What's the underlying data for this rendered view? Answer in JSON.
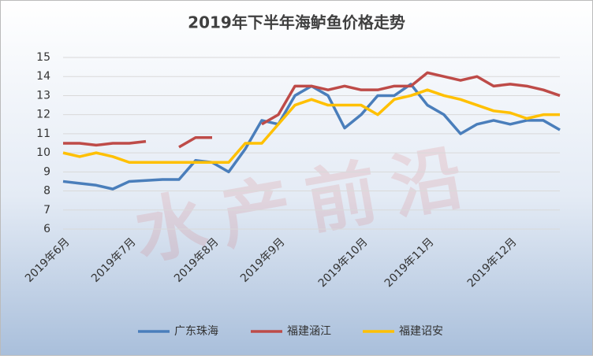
{
  "chart_data": {
    "type": "line",
    "title": "2019年下半年海鲈鱼价格走势",
    "watermark": "水产前沿",
    "categories": [
      "2019年6月",
      null,
      null,
      null,
      "2019年7月",
      null,
      null,
      null,
      null,
      "2019年8月",
      null,
      null,
      null,
      "2019年9月",
      null,
      null,
      null,
      null,
      "2019年10月",
      null,
      null,
      null,
      "2019年11月",
      null,
      null,
      null,
      null,
      "2019年12月",
      null,
      null,
      null
    ],
    "series": [
      {
        "name": "广东珠海",
        "color": "#4a7ebb",
        "values": [
          8.5,
          8.4,
          8.3,
          8.1,
          8.5,
          8.55,
          8.6,
          8.6,
          9.6,
          9.5,
          9.0,
          10.2,
          11.7,
          11.5,
          13.0,
          13.5,
          13.0,
          11.3,
          12.0,
          13.0,
          13.0,
          13.6,
          12.5,
          12.0,
          11.0,
          11.5,
          11.7,
          11.5,
          11.7,
          11.7,
          11.2
        ]
      },
      {
        "name": "福建涵江",
        "color": "#be4b48",
        "values": [
          10.5,
          10.5,
          10.4,
          10.5,
          10.5,
          10.6,
          null,
          10.3,
          10.8,
          10.8,
          null,
          null,
          11.5,
          12.0,
          13.5,
          13.5,
          13.3,
          13.5,
          13.3,
          13.3,
          13.5,
          13.5,
          14.2,
          14.0,
          13.8,
          14.0,
          13.5,
          13.6,
          13.5,
          13.3,
          13.0
        ]
      },
      {
        "name": "福建诏安",
        "color": "#ffc000",
        "values": [
          10.0,
          9.8,
          10.0,
          9.8,
          9.5,
          9.5,
          9.5,
          9.5,
          9.5,
          9.5,
          9.5,
          10.5,
          10.5,
          11.5,
          12.5,
          12.8,
          12.5,
          12.5,
          12.5,
          12.0,
          12.8,
          13.0,
          13.3,
          13.0,
          12.8,
          12.5,
          12.2,
          12.1,
          11.8,
          12.0,
          12.0
        ]
      }
    ],
    "ylim": [
      6,
      15
    ],
    "yticks": [
      6,
      7,
      8,
      9,
      10,
      11,
      12,
      13,
      14,
      15
    ],
    "grid": true
  }
}
